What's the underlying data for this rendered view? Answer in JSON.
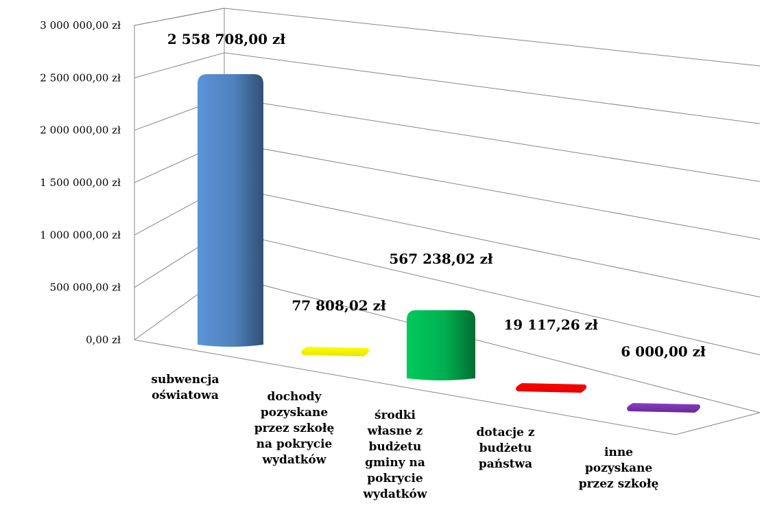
{
  "chart_data": {
    "type": "bar",
    "title": "",
    "xlabel": "",
    "ylabel": "",
    "ylim": [
      0,
      3000000
    ],
    "yticks": [
      0,
      500000,
      1000000,
      1500000,
      2000000,
      2500000,
      3000000
    ],
    "ytick_labels": [
      "0,00 zł",
      "500 000,00 zł",
      "1 000 000,00 zł",
      "1 500 000,00 zł",
      "2 000 000,00 zł",
      "2 500 000,00 zł",
      "3 000 000,00 zł"
    ],
    "grid": true,
    "legend": "none",
    "categories": [
      [
        "subwencja",
        "oświatowa"
      ],
      [
        "dochody",
        "pozyskane",
        "przez szkołę",
        "na pokrycie",
        "wydatków"
      ],
      [
        "środki",
        "własne z",
        "budżetu",
        "gminy na",
        "pokrycie",
        "wydatków"
      ],
      [
        "dotacje z",
        "budżetu",
        "państwa"
      ],
      [
        "inne",
        "pozyskane",
        "przez szkołę"
      ]
    ],
    "values": [
      2558708.0,
      77808.02,
      567238.02,
      19117.26,
      6000.0
    ],
    "data_labels": [
      "2 558 708,00 zł",
      "77 808,02 zł",
      "567 238,02 zł",
      "19 117,26 zł",
      "6 000,00 zł"
    ],
    "colors": [
      "#4f81bd",
      "#ffff00",
      "#00b050",
      "#ff0000",
      "#7030a0"
    ]
  }
}
